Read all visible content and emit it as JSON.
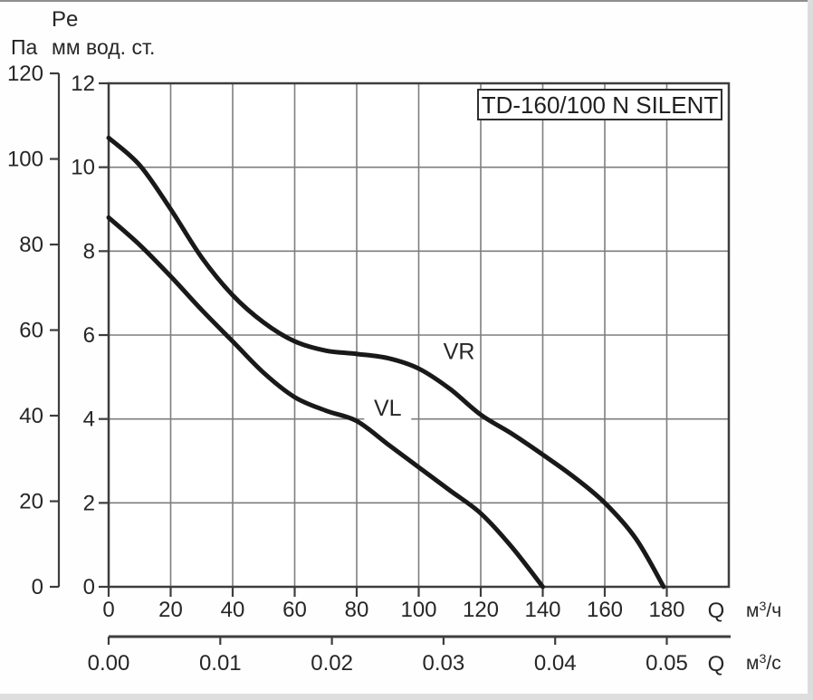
{
  "header": {
    "pressure_symbol": "Pe",
    "unit_pa": "Па",
    "unit_mm": "мм вод. ст."
  },
  "chart_data": {
    "type": "line",
    "title": "TD-160/100 N SILENT",
    "grid": true,
    "legend_position": "inline-labels",
    "colors": {
      "curve": "#191919",
      "grid": "#7e7e7e",
      "frame": "#3d3d3d",
      "text": "#262626",
      "background": "#ffffff"
    },
    "y_axis_pa": {
      "unit": "Па",
      "ticks": [
        0,
        20,
        40,
        60,
        80,
        100,
        120
      ],
      "range": [
        0,
        120
      ]
    },
    "y_axis_mm": {
      "unit": "мм вод. ст.",
      "ticks": [
        0,
        2,
        4,
        6,
        8,
        10,
        12
      ],
      "range": [
        0,
        12
      ]
    },
    "x_axis_primary": {
      "symbol": "Q",
      "unit": "м³/ч",
      "ticks": [
        0,
        20,
        40,
        60,
        80,
        100,
        120,
        140,
        160,
        180
      ],
      "range": [
        0,
        200
      ]
    },
    "x_axis_secondary": {
      "symbol": "Q",
      "unit": "м³/с",
      "ticks": [
        0,
        0.01,
        0.02,
        0.03,
        0.04,
        0.05
      ],
      "tick_labels": [
        "0.00",
        "0.01",
        "0.02",
        "0.03",
        "0.04",
        "0.05"
      ]
    },
    "series": [
      {
        "name": "VR",
        "x_unit": "м³/ч",
        "y_unit": "мм вод. ст.",
        "label_at": {
          "q": 113,
          "pe": 5.62
        },
        "label_white_box": false,
        "points": [
          [
            0,
            10.7
          ],
          [
            10,
            10.05
          ],
          [
            20,
            9.0
          ],
          [
            30,
            7.85
          ],
          [
            40,
            6.95
          ],
          [
            50,
            6.3
          ],
          [
            60,
            5.85
          ],
          [
            70,
            5.63
          ],
          [
            80,
            5.55
          ],
          [
            90,
            5.45
          ],
          [
            100,
            5.2
          ],
          [
            110,
            4.72
          ],
          [
            120,
            4.1
          ],
          [
            130,
            3.65
          ],
          [
            140,
            3.15
          ],
          [
            150,
            2.62
          ],
          [
            160,
            2.0
          ],
          [
            170,
            1.15
          ],
          [
            179,
            0
          ]
        ]
      },
      {
        "name": "VL",
        "x_unit": "м³/ч",
        "y_unit": "мм вод. ст.",
        "label_at": {
          "q": 90,
          "pe": 4.27
        },
        "label_white_box": true,
        "points": [
          [
            0,
            8.8
          ],
          [
            10,
            8.15
          ],
          [
            20,
            7.4
          ],
          [
            30,
            6.6
          ],
          [
            40,
            5.85
          ],
          [
            50,
            5.1
          ],
          [
            60,
            4.52
          ],
          [
            70,
            4.2
          ],
          [
            80,
            3.95
          ],
          [
            90,
            3.4
          ],
          [
            100,
            2.85
          ],
          [
            110,
            2.3
          ],
          [
            120,
            1.75
          ],
          [
            130,
            0.95
          ],
          [
            140,
            0
          ]
        ]
      }
    ]
  }
}
